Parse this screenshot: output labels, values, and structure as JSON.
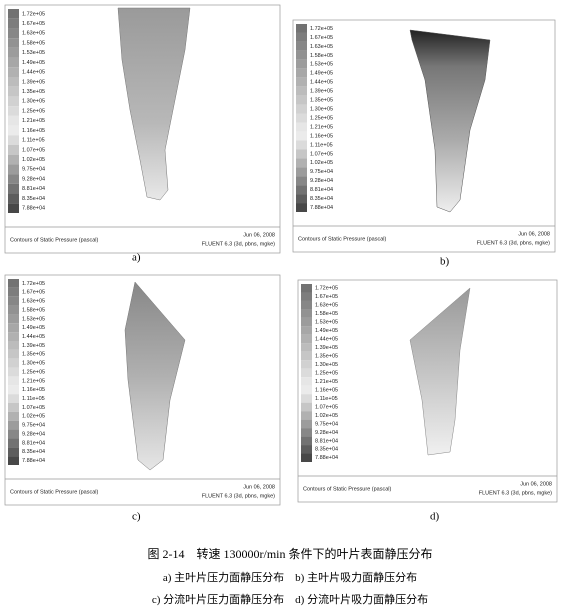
{
  "legend": [
    "1.72e+05",
    "1.67e+05",
    "1.63e+05",
    "1.58e+05",
    "1.53e+05",
    "1.49e+05",
    "1.44e+05",
    "1.39e+05",
    "1.35e+05",
    "1.30e+05",
    "1.25e+05",
    "1.21e+05",
    "1.16e+05",
    "1.11e+05",
    "1.07e+05",
    "1.02e+05",
    "9.75e+04",
    "9.28e+04",
    "8.81e+04",
    "8.35e+04",
    "7.88e+04"
  ],
  "footer": {
    "title": "Contours of Static Pressure (pascal)",
    "date": "Jun 06, 2008",
    "solver": "FLUENT 6.3 (3d, pbns, mgke)"
  },
  "panels": [
    {
      "label": "a)"
    },
    {
      "label": "b)"
    },
    {
      "label": "c)"
    },
    {
      "label": "d)"
    }
  ],
  "caption": {
    "title": "图 2-14　转速 130000r/min 条件下的叶片表面静压分布",
    "line1": "a) 主叶片压力面静压分布　b) 主叶片吸力面静压分布",
    "line2": "c) 分流叶片压力面静压分布　d) 分流叶片吸力面静压分布"
  }
}
